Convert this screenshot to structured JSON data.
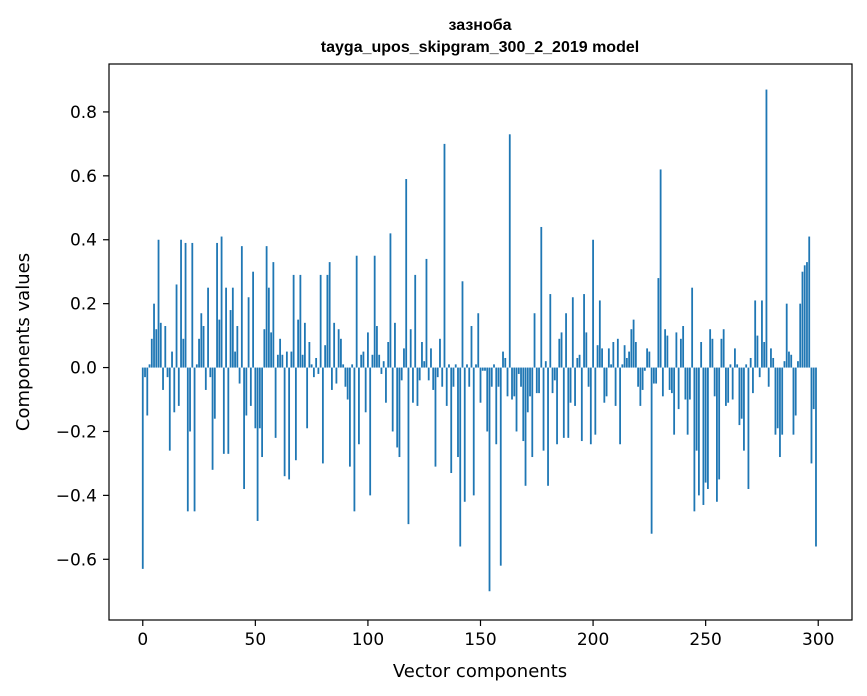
{
  "chart_data": {
    "type": "bar",
    "title": "зазноба",
    "subtitle": "tayga_upos_skipgram_300_2_2019 model",
    "xlabel": "Vector components",
    "ylabel": "Components values",
    "xlim": [
      -15,
      315
    ],
    "ylim": [
      -0.79,
      0.95
    ],
    "xticks": [
      0,
      50,
      100,
      150,
      200,
      250,
      300
    ],
    "yticks": [
      -0.6,
      -0.4,
      -0.2,
      0.0,
      0.2,
      0.4,
      0.6,
      0.8
    ],
    "ytick_labels": [
      "−0.6",
      "−0.4",
      "−0.2",
      "0.0",
      "0.2",
      "0.4",
      "0.6",
      "0.8"
    ],
    "bar_color": "#1f77b4",
    "grid": false,
    "x": [
      0,
      1,
      2,
      3,
      4,
      5,
      6,
      7,
      8,
      9,
      10,
      11,
      12,
      13,
      14,
      15,
      16,
      17,
      18,
      19,
      20,
      21,
      22,
      23,
      24,
      25,
      26,
      27,
      28,
      29,
      30,
      31,
      32,
      33,
      34,
      35,
      36,
      37,
      38,
      39,
      40,
      41,
      42,
      43,
      44,
      45,
      46,
      47,
      48,
      49,
      50,
      51,
      52,
      53,
      54,
      55,
      56,
      57,
      58,
      59,
      60,
      61,
      62,
      63,
      64,
      65,
      66,
      67,
      68,
      69,
      70,
      71,
      72,
      73,
      74,
      75,
      76,
      77,
      78,
      79,
      80,
      81,
      82,
      83,
      84,
      85,
      86,
      87,
      88,
      89,
      90,
      91,
      92,
      93,
      94,
      95,
      96,
      97,
      98,
      99,
      100,
      101,
      102,
      103,
      104,
      105,
      106,
      107,
      108,
      109,
      110,
      111,
      112,
      113,
      114,
      115,
      116,
      117,
      118,
      119,
      120,
      121,
      122,
      123,
      124,
      125,
      126,
      127,
      128,
      129,
      130,
      131,
      132,
      133,
      134,
      135,
      136,
      137,
      138,
      139,
      140,
      141,
      142,
      143,
      144,
      145,
      146,
      147,
      148,
      149,
      150,
      151,
      152,
      153,
      154,
      155,
      156,
      157,
      158,
      159,
      160,
      161,
      162,
      163,
      164,
      165,
      166,
      167,
      168,
      169,
      170,
      171,
      172,
      173,
      174,
      175,
      176,
      177,
      178,
      179,
      180,
      181,
      182,
      183,
      184,
      185,
      186,
      187,
      188,
      189,
      190,
      191,
      192,
      193,
      194,
      195,
      196,
      197,
      198,
      199,
      200,
      201,
      202,
      203,
      204,
      205,
      206,
      207,
      208,
      209,
      210,
      211,
      212,
      213,
      214,
      215,
      216,
      217,
      218,
      219,
      220,
      221,
      222,
      223,
      224,
      225,
      226,
      227,
      228,
      229,
      230,
      231,
      232,
      233,
      234,
      235,
      236,
      237,
      238,
      239,
      240,
      241,
      242,
      243,
      244,
      245,
      246,
      247,
      248,
      249,
      250,
      251,
      252,
      253,
      254,
      255,
      256,
      257,
      258,
      259,
      260,
      261,
      262,
      263,
      264,
      265,
      266,
      267,
      268,
      269,
      270,
      271,
      272,
      273,
      274,
      275,
      276,
      277,
      278,
      279,
      280,
      281,
      282,
      283,
      284,
      285,
      286,
      287,
      288,
      289,
      290,
      291,
      292,
      293,
      294,
      295,
      296,
      297,
      298,
      299
    ],
    "values": [
      -0.63,
      -0.03,
      -0.15,
      0.01,
      0.09,
      0.2,
      0.12,
      0.4,
      0.14,
      -0.07,
      0.13,
      -0.03,
      -0.26,
      0.05,
      -0.14,
      0.26,
      -0.12,
      0.4,
      0.09,
      0.39,
      -0.45,
      -0.2,
      0.39,
      -0.45,
      0.01,
      0.09,
      0.17,
      0.13,
      -0.07,
      0.25,
      -0.03,
      -0.32,
      -0.16,
      0.39,
      0.15,
      0.41,
      -0.27,
      0.25,
      -0.27,
      0.18,
      0.25,
      0.05,
      0.13,
      -0.05,
      0.38,
      -0.38,
      -0.15,
      0.22,
      -0.12,
      0.3,
      -0.19,
      -0.48,
      -0.19,
      -0.28,
      0.12,
      0.38,
      0.25,
      0.11,
      0.33,
      -0.22,
      0.04,
      0.09,
      0.04,
      -0.34,
      0.05,
      -0.35,
      0.05,
      0.29,
      -0.29,
      0.15,
      0.29,
      0.04,
      0.14,
      -0.19,
      0.08,
      0.01,
      -0.03,
      0.03,
      -0.02,
      0.29,
      -0.3,
      0.07,
      0.29,
      0.33,
      -0.07,
      0.14,
      -0.05,
      0.12,
      0.09,
      0.01,
      -0.06,
      -0.1,
      -0.31,
      0.01,
      -0.45,
      0.35,
      -0.24,
      0.04,
      0.05,
      -0.14,
      0.11,
      -0.4,
      0.04,
      0.35,
      0.13,
      0.04,
      -0.02,
      0.02,
      -0.11,
      0.08,
      0.42,
      -0.2,
      0.14,
      -0.25,
      -0.28,
      -0.04,
      0.06,
      0.59,
      -0.49,
      0.12,
      -0.11,
      0.29,
      -0.12,
      -0.04,
      0.08,
      0.02,
      0.34,
      -0.04,
      0.06,
      -0.07,
      -0.31,
      -0.03,
      0.09,
      -0.06,
      0.7,
      -0.12,
      0.01,
      -0.33,
      -0.06,
      0.01,
      -0.28,
      -0.56,
      0.27,
      -0.42,
      0.01,
      -0.06,
      0.13,
      -0.4,
      0.01,
      0.17,
      -0.11,
      -0.01,
      -0.01,
      -0.2,
      -0.7,
      -0.06,
      0.01,
      -0.24,
      -0.06,
      -0.62,
      0.05,
      0.03,
      -0.09,
      0.73,
      -0.1,
      -0.09,
      -0.2,
      -0.02,
      -0.06,
      -0.23,
      -0.37,
      -0.14,
      -0.09,
      -0.28,
      0.17,
      -0.08,
      -0.08,
      0.44,
      -0.26,
      0.02,
      -0.37,
      0.23,
      -0.08,
      -0.04,
      -0.24,
      0.09,
      0.11,
      -0.22,
      0.17,
      -0.22,
      -0.11,
      0.22,
      -0.12,
      0.03,
      0.04,
      -0.23,
      0.23,
      0.11,
      -0.06,
      -0.24,
      0.4,
      -0.21,
      0.07,
      0.21,
      0.06,
      -0.11,
      -0.09,
      0.06,
      0.01,
      0.08,
      -0.12,
      0.09,
      -0.24,
      0.01,
      0.07,
      0.03,
      0.05,
      0.12,
      0.15,
      0.08,
      -0.06,
      -0.12,
      -0.07,
      -0.01,
      0.06,
      0.05,
      -0.52,
      -0.05,
      -0.05,
      0.28,
      0.62,
      -0.09,
      0.12,
      0.1,
      -0.07,
      -0.08,
      -0.21,
      0.11,
      -0.13,
      0.09,
      0.13,
      -0.1,
      -0.21,
      -0.1,
      0.25,
      -0.45,
      -0.26,
      -0.4,
      0.08,
      -0.43,
      -0.36,
      -0.38,
      0.12,
      0.09,
      -0.09,
      -0.42,
      -0.35,
      0.09,
      0.12,
      -0.12,
      -0.11,
      0.01,
      -0.1,
      0.06,
      0.01,
      -0.18,
      -0.16,
      -0.26,
      0.01,
      -0.38,
      0.03,
      -0.08,
      0.21,
      0.1,
      -0.03,
      0.21,
      0.08,
      0.87,
      -0.06,
      0.06,
      0.03,
      -0.21,
      -0.19,
      -0.28,
      -0.21,
      0.02,
      0.2,
      0.05,
      0.04,
      -0.21,
      -0.15,
      0.02,
      0.2,
      0.3,
      0.32,
      0.33,
      0.41,
      -0.3,
      -0.13,
      -0.56
    ]
  }
}
